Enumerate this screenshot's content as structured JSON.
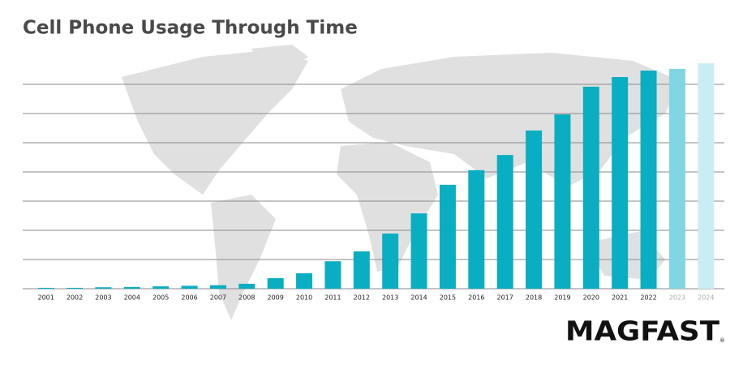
{
  "chart_data": {
    "type": "bar",
    "title": "Cell Phone Usage Through Time",
    "categories": [
      "2001",
      "2002",
      "2003",
      "2004",
      "2005",
      "2006",
      "2007",
      "2008",
      "2009",
      "2010",
      "2011",
      "2012",
      "2013",
      "2014",
      "2015",
      "2016",
      "2017",
      "2018",
      "2019",
      "2020",
      "2021",
      "2022",
      "2023",
      "2024"
    ],
    "values": [
      0.03,
      0.03,
      0.05,
      0.06,
      0.08,
      0.1,
      0.12,
      0.17,
      0.36,
      0.53,
      0.94,
      1.28,
      1.89,
      2.58,
      3.56,
      4.06,
      4.58,
      5.42,
      5.97,
      6.92,
      7.25,
      7.47,
      7.53,
      7.72
    ],
    "colors": [
      "#0aaec2",
      "#0aaec2",
      "#0aaec2",
      "#0aaec2",
      "#0aaec2",
      "#0aaec2",
      "#0aaec2",
      "#0aaec2",
      "#0aaec2",
      "#0aaec2",
      "#0aaec2",
      "#0aaec2",
      "#0aaec2",
      "#0aaec2",
      "#0aaec2",
      "#0aaec2",
      "#0aaec2",
      "#0aaec2",
      "#0aaec2",
      "#0aaec2",
      "#0aaec2",
      "#0aaec2",
      "#82d6e2",
      "#c9edf3"
    ],
    "ylim": [
      0,
      8
    ],
    "yticks": [
      0,
      1,
      2,
      3,
      4,
      5,
      6,
      7
    ],
    "grid": true,
    "logo": "MAGFAST",
    "logo_mark": "®"
  }
}
